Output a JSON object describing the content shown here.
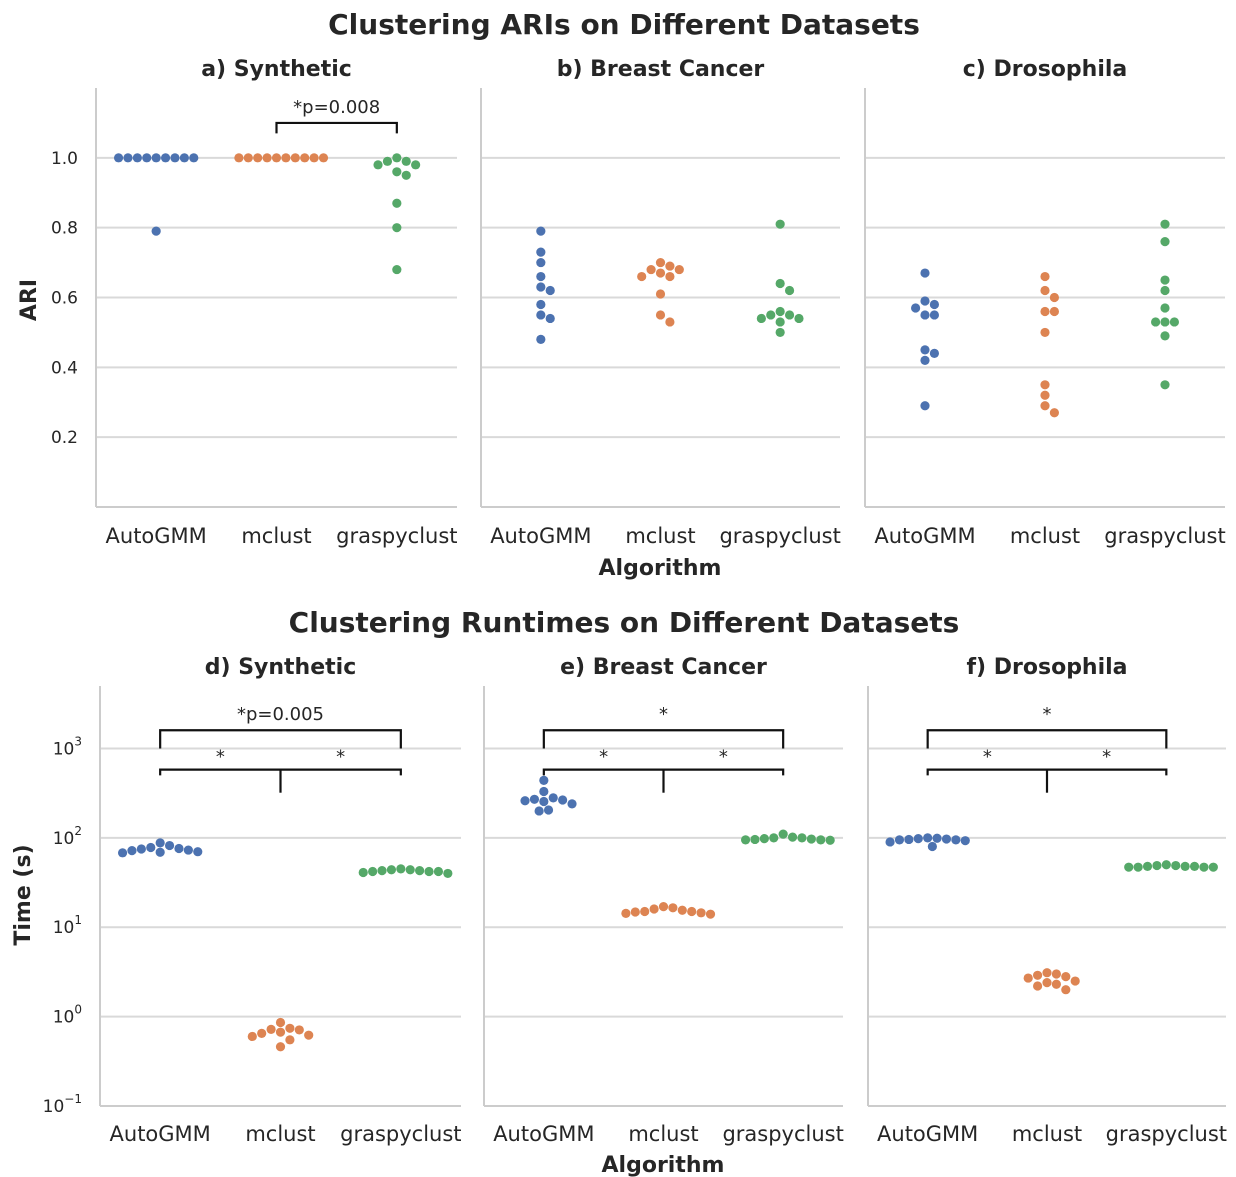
{
  "colors": {
    "AutoGMM": "#4c72b0",
    "mclust": "#dd8452",
    "graspyclust": "#55a868"
  },
  "rows": [
    {
      "title": "Clustering ARIs on Different Datasets",
      "ylabel": "ARI",
      "xlabel": "Algorithm"
    },
    {
      "title": "Clustering Runtimes on Different Datasets",
      "ylabel": "Time (s)",
      "xlabel": "Algorithm"
    }
  ],
  "chart_data": [
    {
      "type": "scatter",
      "title": "a) Synthetic",
      "categories": [
        "AutoGMM",
        "mclust",
        "graspyclust"
      ],
      "yscale": "linear",
      "ylim": [
        0.0,
        1.2
      ],
      "yticks": [
        0.2,
        0.4,
        0.6,
        0.8,
        1.0
      ],
      "ytick_labels": [
        "0.2",
        "0.4",
        "0.6",
        "0.8",
        "1.0"
      ],
      "series": [
        {
          "category": "AutoGMM",
          "values": [
            1.0,
            1.0,
            1.0,
            1.0,
            1.0,
            1.0,
            1.0,
            1.0,
            1.0,
            0.79
          ]
        },
        {
          "category": "mclust",
          "values": [
            1.0,
            1.0,
            1.0,
            1.0,
            1.0,
            1.0,
            1.0,
            1.0,
            1.0,
            1.0
          ]
        },
        {
          "category": "graspyclust",
          "values": [
            1.0,
            0.99,
            0.99,
            0.98,
            0.98,
            0.96,
            0.95,
            0.87,
            0.8,
            0.68
          ]
        }
      ],
      "brackets": [
        {
          "from": "mclust",
          "to": "graspyclust",
          "level": 1.1,
          "leg": 0.03,
          "label": "*p=0.008"
        }
      ]
    },
    {
      "type": "scatter",
      "title": "b) Breast Cancer",
      "categories": [
        "AutoGMM",
        "mclust",
        "graspyclust"
      ],
      "yscale": "linear",
      "ylim": [
        0.0,
        1.2
      ],
      "yticks": [
        0.2,
        0.4,
        0.6,
        0.8,
        1.0
      ],
      "series": [
        {
          "category": "AutoGMM",
          "values": [
            0.79,
            0.73,
            0.7,
            0.66,
            0.63,
            0.62,
            0.58,
            0.55,
            0.54,
            0.48
          ]
        },
        {
          "category": "mclust",
          "values": [
            0.7,
            0.69,
            0.68,
            0.68,
            0.67,
            0.66,
            0.66,
            0.61,
            0.55,
            0.53
          ]
        },
        {
          "category": "graspyclust",
          "values": [
            0.81,
            0.64,
            0.62,
            0.56,
            0.55,
            0.55,
            0.54,
            0.54,
            0.53,
            0.5
          ]
        }
      ],
      "brackets": []
    },
    {
      "type": "scatter",
      "title": "c) Drosophila",
      "categories": [
        "AutoGMM",
        "mclust",
        "graspyclust"
      ],
      "yscale": "linear",
      "ylim": [
        0.0,
        1.2
      ],
      "yticks": [
        0.2,
        0.4,
        0.6,
        0.8,
        1.0
      ],
      "series": [
        {
          "category": "AutoGMM",
          "values": [
            0.67,
            0.59,
            0.58,
            0.57,
            0.55,
            0.55,
            0.45,
            0.44,
            0.42,
            0.29
          ]
        },
        {
          "category": "mclust",
          "values": [
            0.66,
            0.62,
            0.6,
            0.56,
            0.56,
            0.5,
            0.35,
            0.32,
            0.29,
            0.27
          ]
        },
        {
          "category": "graspyclust",
          "values": [
            0.81,
            0.76,
            0.65,
            0.62,
            0.57,
            0.53,
            0.53,
            0.53,
            0.49,
            0.35
          ]
        }
      ],
      "brackets": []
    },
    {
      "type": "scatter",
      "title": "d) Synthetic",
      "categories": [
        "AutoGMM",
        "mclust",
        "graspyclust"
      ],
      "yscale": "log",
      "ylim": [
        0.1,
        5000
      ],
      "yticks": [
        0.1,
        1,
        10,
        100,
        1000
      ],
      "ytick_labels": [
        "10",
        "10",
        "10",
        "10",
        "10"
      ],
      "ytick_exps": [
        "−1",
        "0",
        "1",
        "2",
        "3"
      ],
      "series": [
        {
          "category": "AutoGMM",
          "values": [
            88,
            82,
            78,
            76,
            75,
            73,
            72,
            70,
            69,
            68
          ]
        },
        {
          "category": "mclust",
          "values": [
            0.86,
            0.74,
            0.72,
            0.71,
            0.67,
            0.65,
            0.62,
            0.6,
            0.55,
            0.46
          ]
        },
        {
          "category": "graspyclust",
          "values": [
            45,
            44,
            44,
            43,
            43,
            42,
            42,
            42,
            41,
            40
          ]
        }
      ],
      "brackets": [
        {
          "from": "AutoGMM",
          "to": "graspyclust",
          "level": 1600,
          "leg_to": 1000,
          "label": "*p=0.005"
        },
        {
          "from": "AutoGMM",
          "to": "graspyclust",
          "level": 580,
          "leg_to": 500,
          "label": ""
        },
        {
          "from": "mclust",
          "to": "mclust",
          "level": 580,
          "leg_to": 320,
          "label": ""
        }
      ],
      "stars": [
        {
          "between": [
            "AutoGMM",
            "mclust"
          ],
          "label": "*"
        },
        {
          "between": [
            "mclust",
            "graspyclust"
          ],
          "label": "*"
        }
      ]
    },
    {
      "type": "scatter",
      "title": "e) Breast Cancer",
      "categories": [
        "AutoGMM",
        "mclust",
        "graspyclust"
      ],
      "yscale": "log",
      "ylim": [
        0.1,
        5000
      ],
      "yticks": [
        0.1,
        1,
        10,
        100,
        1000
      ],
      "series": [
        {
          "category": "AutoGMM",
          "values": [
            440,
            330,
            280,
            270,
            265,
            260,
            255,
            240,
            205,
            200
          ]
        },
        {
          "category": "mclust",
          "values": [
            17,
            16.5,
            16,
            15.5,
            15,
            15,
            14.8,
            14.5,
            14.3,
            14
          ]
        },
        {
          "category": "graspyclust",
          "values": [
            110,
            102,
            100,
            100,
            98,
            97,
            96,
            95,
            95,
            94
          ]
        }
      ],
      "brackets": [
        {
          "from": "AutoGMM",
          "to": "graspyclust",
          "level": 1600,
          "leg_to": 1000,
          "label": "*"
        },
        {
          "from": "AutoGMM",
          "to": "graspyclust",
          "level": 580,
          "leg_to": 500,
          "label": ""
        },
        {
          "from": "mclust",
          "to": "mclust",
          "level": 580,
          "leg_to": 320,
          "label": ""
        }
      ],
      "stars": [
        {
          "between": [
            "AutoGMM",
            "mclust"
          ],
          "label": "*"
        },
        {
          "between": [
            "mclust",
            "graspyclust"
          ],
          "label": "*"
        }
      ]
    },
    {
      "type": "scatter",
      "title": "f) Drosophila",
      "categories": [
        "AutoGMM",
        "mclust",
        "graspyclust"
      ],
      "yscale": "log",
      "ylim": [
        0.1,
        5000
      ],
      "yticks": [
        0.1,
        1,
        10,
        100,
        1000
      ],
      "series": [
        {
          "category": "AutoGMM",
          "values": [
            100,
            99,
            98,
            97,
            96,
            95,
            95,
            93,
            90,
            80
          ]
        },
        {
          "category": "mclust",
          "values": [
            3.1,
            3.0,
            2.9,
            2.8,
            2.7,
            2.5,
            2.4,
            2.3,
            2.2,
            2.0
          ]
        },
        {
          "category": "graspyclust",
          "values": [
            50,
            49,
            49,
            48,
            48,
            48,
            47,
            47,
            47,
            47
          ]
        }
      ],
      "brackets": [
        {
          "from": "AutoGMM",
          "to": "graspyclust",
          "level": 1600,
          "leg_to": 1000,
          "label": "*"
        },
        {
          "from": "AutoGMM",
          "to": "graspyclust",
          "level": 580,
          "leg_to": 500,
          "label": ""
        },
        {
          "from": "mclust",
          "to": "mclust",
          "level": 580,
          "leg_to": 320,
          "label": ""
        }
      ],
      "stars": [
        {
          "between": [
            "AutoGMM",
            "mclust"
          ],
          "label": "*"
        },
        {
          "between": [
            "mclust",
            "graspyclust"
          ],
          "label": "*"
        }
      ]
    }
  ]
}
